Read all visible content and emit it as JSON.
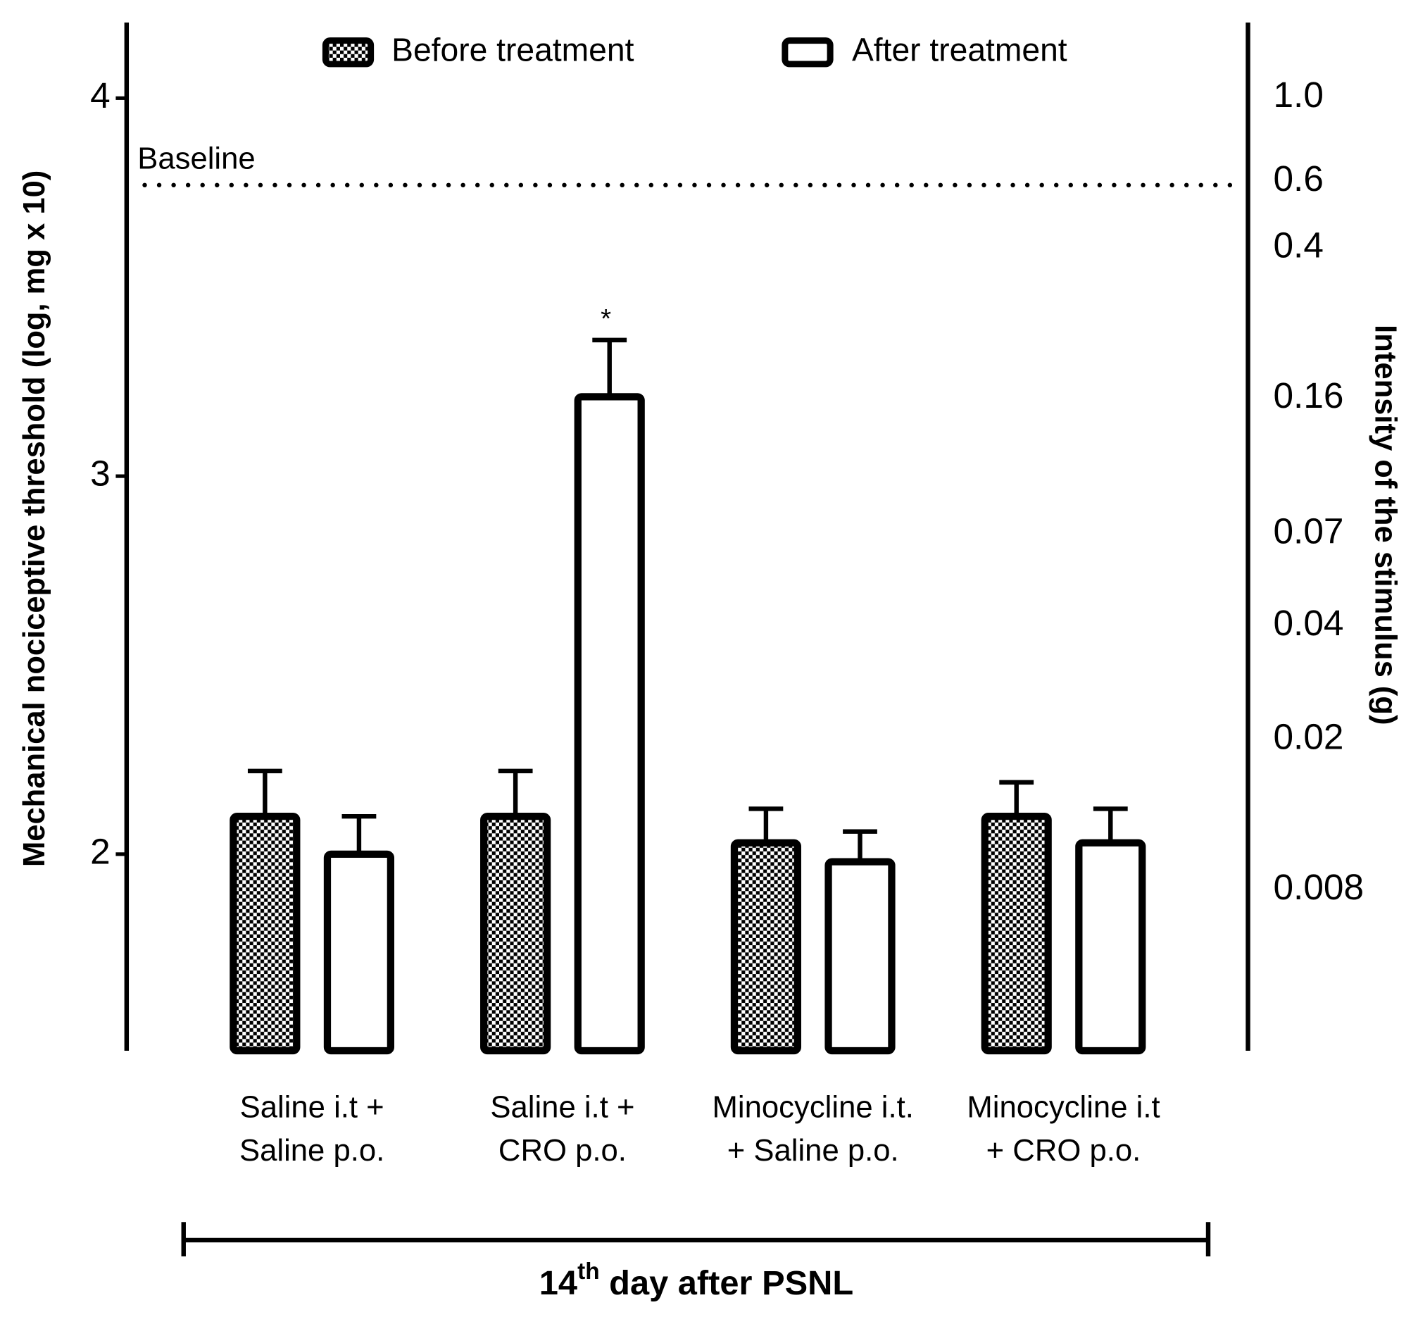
{
  "chart_data": {
    "type": "bar",
    "ylabel": "Mechanical nociceptive threshold (log, mg x 10)",
    "y2label": "Intensity of the stimulus (g)",
    "xlabel_parts": [
      "14",
      "th",
      " day after PSNL"
    ],
    "categories": [
      [
        "Saline i.t +",
        "Saline p.o."
      ],
      [
        "Saline i.t +",
        "CRO p.o."
      ],
      [
        "Minocycline i.t.",
        "+ Saline p.o."
      ],
      [
        "Minocycline i.t",
        "+ CRO p.o."
      ]
    ],
    "series": [
      {
        "name": "Before treatment",
        "fill": "checkered",
        "values": [
          2.1,
          2.1,
          2.03,
          2.1
        ],
        "errors": [
          0.12,
          0.12,
          0.09,
          0.09
        ]
      },
      {
        "name": "After treatment",
        "fill": "#ffffff",
        "values": [
          2.0,
          3.21,
          1.98,
          2.03
        ],
        "errors": [
          0.1,
          0.15,
          0.08,
          0.09
        ]
      }
    ],
    "edge_color": "#000000",
    "ylim": [
      1.48,
      4.2
    ],
    "yticks": [
      2,
      3,
      4
    ],
    "y2lim": [
      0.003,
      1.58
    ],
    "y2log": true,
    "y2ticks": [
      {
        "value": 1,
        "label": "1.0"
      },
      0.6,
      0.4,
      0.16,
      0.07,
      0.04,
      0.02,
      0.008
    ],
    "baseline": {
      "label": "Baseline",
      "value": 3.77
    },
    "annotation": "*",
    "legend": "top"
  }
}
